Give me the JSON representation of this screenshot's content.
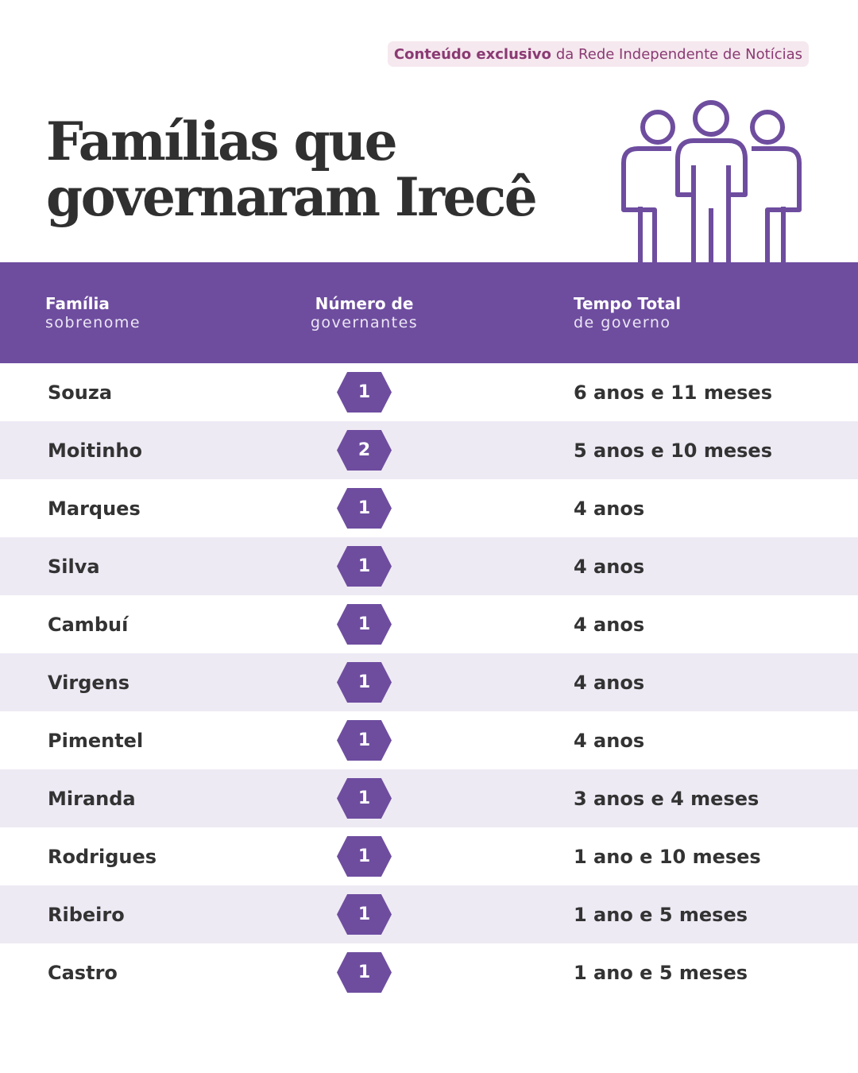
{
  "badge": {
    "strong": "Conteúdo exclusivo",
    "rest": "da Rede Independente de Notícias"
  },
  "title": {
    "line1": "Famílias que",
    "line2": "governaram Irecê"
  },
  "icon": "three-people-icon",
  "colors": {
    "accent": "#6e4d9f",
    "row_alt": "#eeeaf4",
    "badge_bg": "#f5e8ee",
    "badge_text": "#8a3a73"
  },
  "columns": [
    {
      "title": "Família",
      "subtitle": "sobrenome"
    },
    {
      "title": "Número de",
      "subtitle": "governantes"
    },
    {
      "title": "Tempo Total",
      "subtitle": "de governo"
    }
  ],
  "rows": [
    {
      "family": "Souza",
      "count": "1",
      "time": "6 anos e 11 meses"
    },
    {
      "family": "Moitinho",
      "count": "2",
      "time": "5 anos e 10 meses"
    },
    {
      "family": "Marques",
      "count": "1",
      "time": "4 anos"
    },
    {
      "family": "Silva",
      "count": "1",
      "time": "4 anos"
    },
    {
      "family": "Cambuí",
      "count": "1",
      "time": "4 anos"
    },
    {
      "family": "Virgens",
      "count": "1",
      "time": "4 anos"
    },
    {
      "family": "Pimentel",
      "count": "1",
      "time": "4 anos"
    },
    {
      "family": "Miranda",
      "count": "1",
      "time": "3 anos e 4 meses"
    },
    {
      "family": "Rodrigues",
      "count": "1",
      "time": "1 ano e 10 meses"
    },
    {
      "family": "Ribeiro",
      "count": "1",
      "time": "1 ano e 5 meses"
    },
    {
      "family": "Castro",
      "count": "1",
      "time": "1 ano e 5 meses"
    }
  ]
}
